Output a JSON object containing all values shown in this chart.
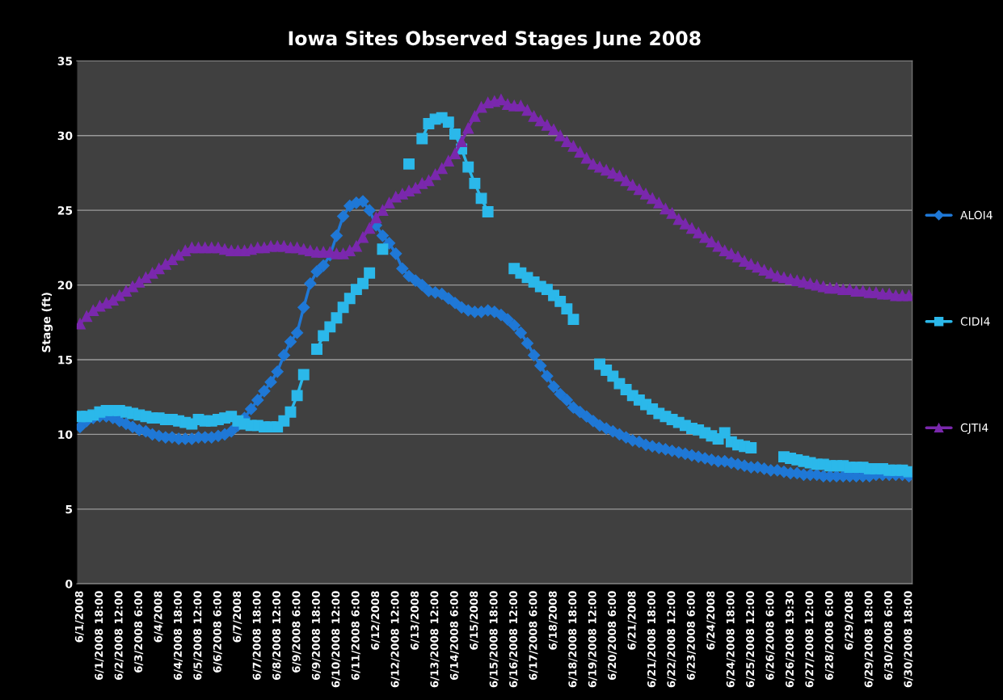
{
  "chart_data": {
    "type": "line",
    "title": "Iowa Sites Observed Stages June 2008",
    "ylabel": "Stage (ft)",
    "categories": [
      "6/1/2008",
      null,
      null,
      "6/1/2008 18:00",
      null,
      null,
      "6/2/2008 12:00",
      null,
      null,
      "6/3/2008 6:00",
      null,
      null,
      "6/4/2008",
      null,
      null,
      "6/4/2008 18:00",
      null,
      null,
      "6/5/2008 12:00",
      null,
      null,
      "6/6/2008 6:00",
      null,
      null,
      "6/7/2008",
      null,
      null,
      "6/7/2008 18:00",
      null,
      null,
      "6/8/2008 12:00",
      null,
      null,
      "6/9/2008 6:00",
      null,
      null,
      "6/9/2008 18:00",
      null,
      null,
      "6/10/2008 12:00",
      null,
      null,
      "6/11/2008 6:00",
      null,
      null,
      "6/12/2008",
      null,
      null,
      "6/12/2008 12:00",
      null,
      null,
      "6/13/2008",
      null,
      null,
      "6/13/2008 12:00",
      null,
      null,
      "6/14/2008 6:00",
      null,
      null,
      "6/15/2008",
      null,
      null,
      "6/15/2008 18:00",
      null,
      null,
      "6/16/2008 12:00",
      null,
      null,
      "6/17/2008 6:00",
      null,
      null,
      "6/18/2008",
      null,
      null,
      "6/18/2008 18:00",
      null,
      null,
      "6/19/2008 12:00",
      null,
      null,
      "6/20/2008 6:00",
      null,
      null,
      "6/21/2008",
      null,
      null,
      "6/21/2008 18:00",
      null,
      null,
      "6/22/2008 12:00",
      null,
      null,
      "6/23/2008 6:00",
      null,
      null,
      "6/24/2008",
      null,
      null,
      "6/24/2008 18:00",
      null,
      null,
      "6/25/2008 12:00",
      null,
      null,
      "6/26/2008 6:00",
      null,
      null,
      "6/26/2008 19:30",
      null,
      null,
      "6/27/2008 12:00",
      null,
      null,
      "6/28/2008 6:00",
      null,
      null,
      "6/29/2008",
      null,
      null,
      "6/29/2008 18:00",
      null,
      null,
      "6/30/2008 6:00",
      null,
      null,
      "6/30/2008 18:00"
    ],
    "series": [
      {
        "name": "ALOI4",
        "color": "#1f78d6",
        "marker": "diamond",
        "values": [
          10.5,
          10.9,
          11.1,
          11.2,
          11.2,
          11.1,
          10.9,
          10.7,
          10.5,
          10.3,
          10.2,
          10.0,
          9.9,
          9.8,
          9.8,
          9.7,
          9.7,
          9.7,
          9.8,
          9.8,
          9.8,
          9.9,
          10.0,
          10.2,
          10.6,
          11.1,
          11.7,
          12.3,
          12.9,
          13.5,
          14.2,
          15.3,
          16.2,
          16.8,
          18.5,
          20.1,
          20.9,
          21.3,
          22.0,
          23.3,
          24.6,
          25.3,
          25.5,
          25.6,
          25.0,
          24.0,
          23.3,
          22.8,
          22.1,
          21.1,
          20.6,
          20.3,
          20.0,
          19.6,
          19.5,
          19.4,
          19.1,
          18.8,
          18.5,
          18.3,
          18.2,
          18.2,
          18.3,
          18.2,
          18.0,
          17.7,
          17.3,
          16.8,
          16.1,
          15.3,
          14.6,
          13.9,
          13.2,
          12.7,
          12.3,
          11.8,
          11.5,
          11.2,
          10.9,
          10.6,
          10.4,
          10.2,
          10.0,
          9.8,
          9.6,
          9.5,
          9.3,
          9.2,
          9.1,
          9.0,
          8.9,
          8.8,
          8.7,
          8.6,
          8.5,
          8.4,
          8.3,
          8.2,
          8.2,
          8.1,
          8.0,
          7.9,
          7.8,
          7.8,
          7.7,
          7.6,
          7.6,
          7.5,
          7.4,
          7.4,
          7.3,
          7.3,
          7.3,
          7.2,
          7.2,
          7.2,
          7.2,
          7.2,
          7.2,
          7.2,
          7.2,
          7.3,
          7.3,
          7.3,
          7.3,
          7.3,
          7.2
        ]
      },
      {
        "name": "CIDI4",
        "color": "#2bb8ea",
        "marker": "square",
        "values": [
          11.2,
          11.2,
          11.3,
          11.5,
          11.6,
          11.6,
          11.6,
          11.5,
          11.4,
          11.3,
          11.2,
          11.1,
          11.1,
          11.0,
          11.0,
          10.9,
          10.8,
          10.7,
          11.0,
          10.9,
          10.9,
          11.0,
          11.1,
          11.2,
          10.9,
          10.7,
          10.6,
          10.6,
          10.5,
          10.5,
          10.5,
          10.9,
          11.5,
          12.6,
          14.0,
          null,
          15.7,
          16.6,
          17.2,
          17.8,
          18.5,
          19.1,
          19.7,
          20.1,
          20.8,
          null,
          22.4,
          null,
          null,
          null,
          28.1,
          null,
          29.8,
          30.8,
          31.1,
          31.2,
          30.9,
          30.1,
          29.1,
          27.9,
          26.8,
          25.8,
          24.9,
          null,
          null,
          null,
          21.1,
          20.8,
          20.5,
          20.2,
          19.9,
          19.7,
          19.3,
          18.9,
          18.4,
          17.7,
          null,
          null,
          null,
          14.7,
          14.3,
          13.9,
          13.4,
          13.0,
          12.6,
          12.3,
          12.0,
          11.7,
          11.4,
          11.2,
          11.0,
          10.8,
          10.6,
          10.4,
          10.3,
          10.1,
          9.9,
          9.7,
          10.1,
          9.5,
          9.3,
          9.2,
          9.1,
          null,
          null,
          null,
          null,
          8.5,
          8.4,
          8.3,
          8.2,
          8.1,
          8.0,
          8.0,
          7.9,
          7.9,
          7.9,
          7.8,
          7.8,
          7.8,
          7.7,
          7.7,
          7.7,
          7.6,
          7.6,
          7.6,
          7.5
        ]
      },
      {
        "name": "CJTI4",
        "color": "#7a28ad",
        "marker": "triangle",
        "values": [
          17.4,
          17.9,
          18.3,
          18.6,
          18.8,
          19.0,
          19.3,
          19.6,
          19.9,
          20.2,
          20.5,
          20.8,
          21.1,
          21.4,
          21.7,
          22.0,
          22.3,
          22.5,
          22.5,
          22.5,
          22.5,
          22.5,
          22.4,
          22.3,
          22.3,
          22.3,
          22.4,
          22.5,
          22.5,
          22.6,
          22.6,
          22.6,
          22.5,
          22.5,
          22.4,
          22.3,
          22.2,
          22.2,
          22.2,
          22.1,
          22.1,
          22.3,
          22.6,
          23.2,
          23.8,
          24.5,
          25.0,
          25.5,
          25.9,
          26.1,
          26.3,
          26.5,
          26.8,
          27.0,
          27.4,
          27.8,
          28.3,
          28.8,
          29.6,
          30.5,
          31.3,
          31.9,
          32.2,
          32.3,
          32.4,
          32.1,
          32.0,
          32.0,
          31.7,
          31.3,
          31.0,
          30.7,
          30.4,
          30.0,
          29.6,
          29.3,
          28.9,
          28.5,
          28.1,
          27.9,
          27.7,
          27.5,
          27.3,
          27.0,
          26.7,
          26.4,
          26.1,
          25.8,
          25.5,
          25.1,
          24.8,
          24.4,
          24.1,
          23.8,
          23.5,
          23.2,
          22.9,
          22.6,
          22.3,
          22.1,
          21.9,
          21.6,
          21.4,
          21.2,
          21.0,
          20.8,
          20.6,
          20.5,
          20.4,
          20.3,
          20.2,
          20.1,
          20.0,
          19.9,
          19.8,
          19.8,
          19.7,
          19.7,
          19.6,
          19.6,
          19.5,
          19.5,
          19.4,
          19.4,
          19.3,
          19.3,
          19.3
        ]
      }
    ],
    "ylim": [
      0,
      35
    ],
    "yticks": [
      0,
      5,
      10,
      15,
      20,
      25,
      30,
      35
    ],
    "grid": "y",
    "legend": "right",
    "line_style": "solid"
  }
}
